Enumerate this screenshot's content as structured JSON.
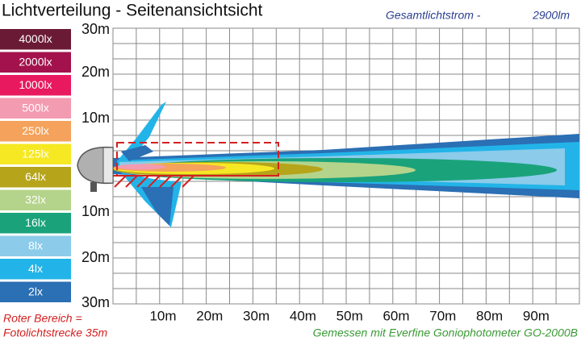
{
  "header": {
    "title": "Lichtverteilung - Seitenansichtsicht",
    "flux_label": "Gesamtlichtstrom -",
    "flux_value": "2900lm"
  },
  "legend": [
    {
      "label": "4000lx",
      "color": "#6b1a35"
    },
    {
      "label": "2000lx",
      "color": "#a3124c"
    },
    {
      "label": "1000lx",
      "color": "#e8195f"
    },
    {
      "label": "500lx",
      "color": "#f39bb1"
    },
    {
      "label": "250lx",
      "color": "#f4a25c"
    },
    {
      "label": "125lx",
      "color": "#f6e823"
    },
    {
      "label": "64lx",
      "color": "#b6a41b"
    },
    {
      "label": "32lx",
      "color": "#b4d48b"
    },
    {
      "label": "16lx",
      "color": "#1aa37b"
    },
    {
      "label": "8lx",
      "color": "#8ccbea"
    },
    {
      "label": "4lx",
      "color": "#22b4e8"
    },
    {
      "label": "2lx",
      "color": "#2b6fb4"
    }
  ],
  "y_axis_labels": [
    "30m",
    "20m",
    "10m",
    "10m",
    "20m",
    "30m"
  ],
  "x_axis_labels": [
    "10m",
    "20m",
    "30m",
    "40m",
    "50m",
    "60m",
    "70m",
    "80m",
    "90m"
  ],
  "notes": {
    "red_area": [
      "Roter Bereich =",
      "Fotolichtstrecke 35m"
    ],
    "measurement": "Gemessen mit Everfine Goniophotometer GO-2000B"
  }
}
